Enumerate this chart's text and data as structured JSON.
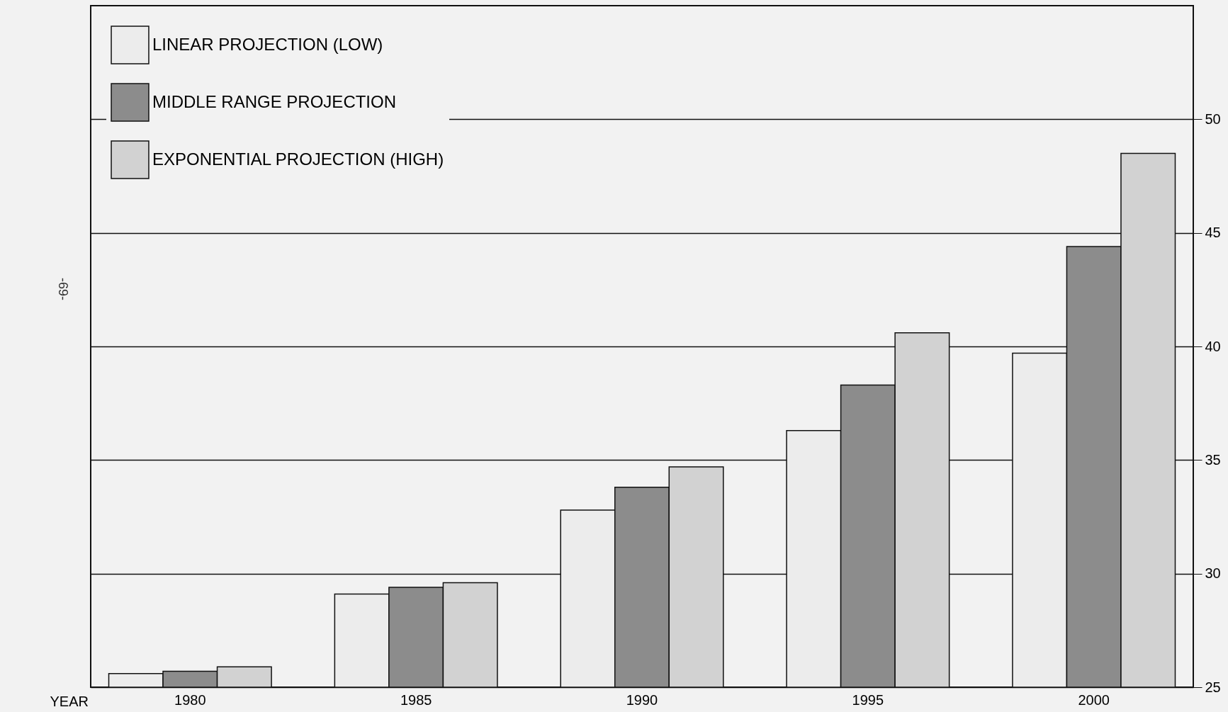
{
  "chart_data": {
    "type": "bar",
    "xlabel": "YEAR",
    "categories": [
      "1980",
      "1985",
      "1990",
      "1995",
      "2000"
    ],
    "series": [
      {
        "name": "LINEAR PROJECTION (LOW)",
        "color": "#ececec",
        "values": [
          25.6,
          29.1,
          32.8,
          36.3,
          39.7
        ]
      },
      {
        "name": "MIDDLE RANGE PROJECTION",
        "color": "#8c8c8c",
        "values": [
          25.7,
          29.4,
          33.8,
          38.3,
          44.4
        ]
      },
      {
        "name": "EXPONENTIAL PROJECTION (HIGH)",
        "color": "#d2d2d2",
        "values": [
          25.9,
          29.6,
          34.7,
          40.6,
          48.5
        ]
      }
    ],
    "ylim": [
      25,
      55
    ],
    "yticks": [
      25,
      30,
      35,
      40,
      45,
      50
    ],
    "grid": "y",
    "legend": "top left",
    "annotations": [
      "-69-"
    ]
  }
}
